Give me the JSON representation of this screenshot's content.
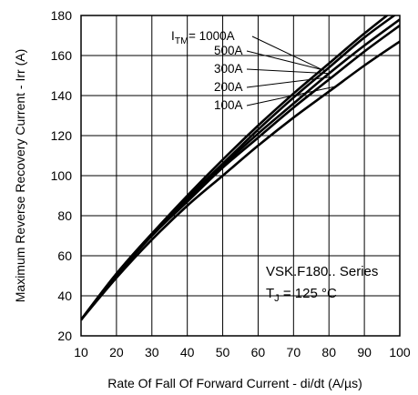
{
  "chart_data": {
    "type": "line",
    "xlabel": "Rate Of Fall Of Forward Current - di/dt (A/µs)",
    "ylabel": "Maximum Reverse Recovery Current - Irr (A)",
    "xlim": [
      10,
      100
    ],
    "ylim": [
      20,
      180
    ],
    "x_ticks": [
      10,
      20,
      30,
      40,
      50,
      60,
      70,
      80,
      90,
      100
    ],
    "y_ticks": [
      20,
      40,
      60,
      80,
      100,
      120,
      140,
      160,
      180
    ],
    "grid": true,
    "label_prefix": {
      "main": "I",
      "sub": "TM",
      "suffix": "="
    },
    "annotation": {
      "line1": "VSK.F180.. Series",
      "line2_main": "T",
      "line2_sub": "J",
      "line2_rest": " = 125 °C"
    },
    "series": [
      {
        "name": "1000A",
        "x": [
          10,
          20,
          30,
          40,
          50,
          60,
          70,
          80,
          90,
          100
        ],
        "y": [
          28,
          51,
          71,
          90,
          108,
          125,
          141,
          156,
          171,
          185
        ]
      },
      {
        "name": "500A",
        "x": [
          10,
          20,
          30,
          40,
          50,
          60,
          70,
          80,
          90,
          100
        ],
        "y": [
          28,
          51,
          71,
          89,
          106,
          123,
          139,
          154,
          169,
          182
        ]
      },
      {
        "name": "300A",
        "x": [
          10,
          20,
          30,
          40,
          50,
          60,
          70,
          80,
          90,
          100
        ],
        "y": [
          28,
          51,
          70,
          88,
          105,
          121,
          136,
          151,
          165,
          178
        ]
      },
      {
        "name": "200A",
        "x": [
          10,
          20,
          30,
          40,
          50,
          60,
          70,
          80,
          90,
          100
        ],
        "y": [
          28,
          50,
          70,
          87,
          104,
          119,
          134,
          148,
          162,
          175
        ]
      },
      {
        "name": "100A",
        "x": [
          10,
          20,
          30,
          40,
          50,
          60,
          70,
          80,
          90,
          100
        ],
        "y": [
          28,
          49,
          68,
          85,
          100,
          115,
          129,
          142,
          155,
          167
        ]
      }
    ]
  }
}
